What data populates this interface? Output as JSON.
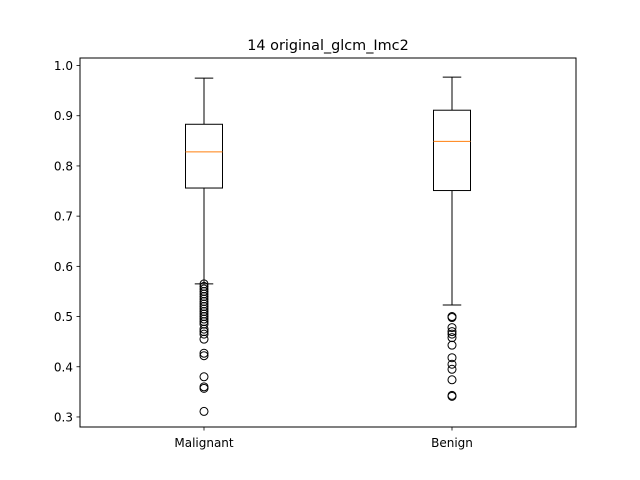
{
  "chart_data": {
    "type": "box",
    "title": "14 original_glcm_Imc2",
    "xlabel": "",
    "ylabel": "",
    "categories": [
      "Malignant",
      "Benign"
    ],
    "ylim": [
      0.28,
      1.015
    ],
    "yticks": [
      "0.3",
      "0.4",
      "0.5",
      "0.6",
      "0.7",
      "0.8",
      "0.9",
      "1.0"
    ],
    "grid": false,
    "boxes": [
      {
        "label": "Malignant",
        "whisker_low": 0.565,
        "q1": 0.756,
        "median": 0.828,
        "q3": 0.883,
        "whisker_high": 0.975,
        "outliers": [
          0.565,
          0.56,
          0.555,
          0.55,
          0.545,
          0.54,
          0.535,
          0.53,
          0.525,
          0.52,
          0.515,
          0.51,
          0.505,
          0.5,
          0.495,
          0.49,
          0.485,
          0.475,
          0.47,
          0.465,
          0.455,
          0.427,
          0.422,
          0.38,
          0.36,
          0.357,
          0.311
        ]
      },
      {
        "label": "Benign",
        "whisker_low": 0.523,
        "q1": 0.751,
        "median": 0.849,
        "q3": 0.911,
        "whisker_high": 0.977,
        "outliers": [
          0.5,
          0.498,
          0.478,
          0.47,
          0.465,
          0.458,
          0.443,
          0.418,
          0.405,
          0.395,
          0.374,
          0.343,
          0.341
        ]
      }
    ],
    "colors": {
      "box": "#000000",
      "median": "#ff7f0e",
      "background": "#ffffff"
    }
  }
}
